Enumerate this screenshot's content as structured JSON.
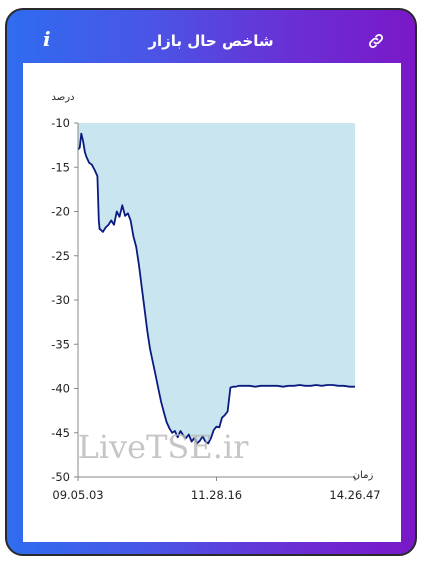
{
  "header": {
    "title": "شاخص حال بازار",
    "info_label": "i",
    "icons": {
      "info": "info-icon",
      "link": "link-icon"
    }
  },
  "chart_data": {
    "type": "area",
    "ylabel": "درصد",
    "xlabel": "زمان",
    "watermark": "LiveTSE.ir",
    "ylim": [
      -50,
      -10
    ],
    "yticks": [
      -10,
      -15,
      -20,
      -25,
      -30,
      -35,
      -40,
      -45,
      -50
    ],
    "ytick_labels": [
      "-10",
      "-15",
      "-20",
      "-25",
      "-30",
      "-35",
      "-40",
      "-45",
      "-50"
    ],
    "xtick_labels": [
      "09.05.03",
      "11.28.16",
      "14.26.47"
    ],
    "grid": false,
    "fill_color": "#c9e6f0",
    "line_color": "#0a1a80",
    "series": [
      {
        "x": [
          0,
          0.006,
          0.012,
          0.018,
          0.025,
          0.03,
          0.04,
          0.05,
          0.06,
          0.07,
          0.075,
          0.078,
          0.08,
          0.09,
          0.1,
          0.11,
          0.12,
          0.13,
          0.14,
          0.15,
          0.16,
          0.17,
          0.18,
          0.19,
          0.2,
          0.21,
          0.22,
          0.23,
          0.24,
          0.25,
          0.26,
          0.27,
          0.28,
          0.29,
          0.3,
          0.31,
          0.32,
          0.33,
          0.34,
          0.35,
          0.36,
          0.37,
          0.38,
          0.39,
          0.4,
          0.41,
          0.42,
          0.43,
          0.44,
          0.45,
          0.46,
          0.47,
          0.48,
          0.49,
          0.5,
          0.51,
          0.52,
          0.53,
          0.54,
          0.55,
          0.56,
          0.57,
          0.58,
          0.6,
          0.62,
          0.64,
          0.66,
          0.68,
          0.7,
          0.72,
          0.74,
          0.76,
          0.78,
          0.8,
          0.82,
          0.84,
          0.86,
          0.88,
          0.9,
          0.92,
          0.94,
          0.96,
          0.98,
          1.0
        ],
        "y": [
          -13.0,
          -12.8,
          -11.2,
          -12.0,
          -13.3,
          -13.8,
          -14.5,
          -14.7,
          -15.3,
          -16.0,
          -21.0,
          -22.0,
          -22.0,
          -22.3,
          -21.8,
          -21.5,
          -21.0,
          -21.5,
          -20.0,
          -20.6,
          -19.3,
          -20.5,
          -20.2,
          -21.0,
          -22.8,
          -24.0,
          -26.0,
          -28.5,
          -31.0,
          -33.5,
          -35.5,
          -37.0,
          -38.5,
          -40.0,
          -41.5,
          -42.7,
          -43.8,
          -44.5,
          -45.0,
          -44.8,
          -45.5,
          -44.8,
          -45.3,
          -45.6,
          -45.2,
          -46.0,
          -45.6,
          -46.2,
          -45.9,
          -45.4,
          -46.0,
          -46.2,
          -45.6,
          -44.7,
          -44.3,
          -44.4,
          -43.3,
          -43.0,
          -42.6,
          -39.9,
          -39.8,
          -39.8,
          -39.7,
          -39.7,
          -39.7,
          -39.8,
          -39.7,
          -39.7,
          -39.7,
          -39.7,
          -39.8,
          -39.7,
          -39.7,
          -39.6,
          -39.7,
          -39.7,
          -39.6,
          -39.7,
          -39.6,
          -39.6,
          -39.7,
          -39.7,
          -39.8,
          -39.8
        ]
      }
    ]
  }
}
